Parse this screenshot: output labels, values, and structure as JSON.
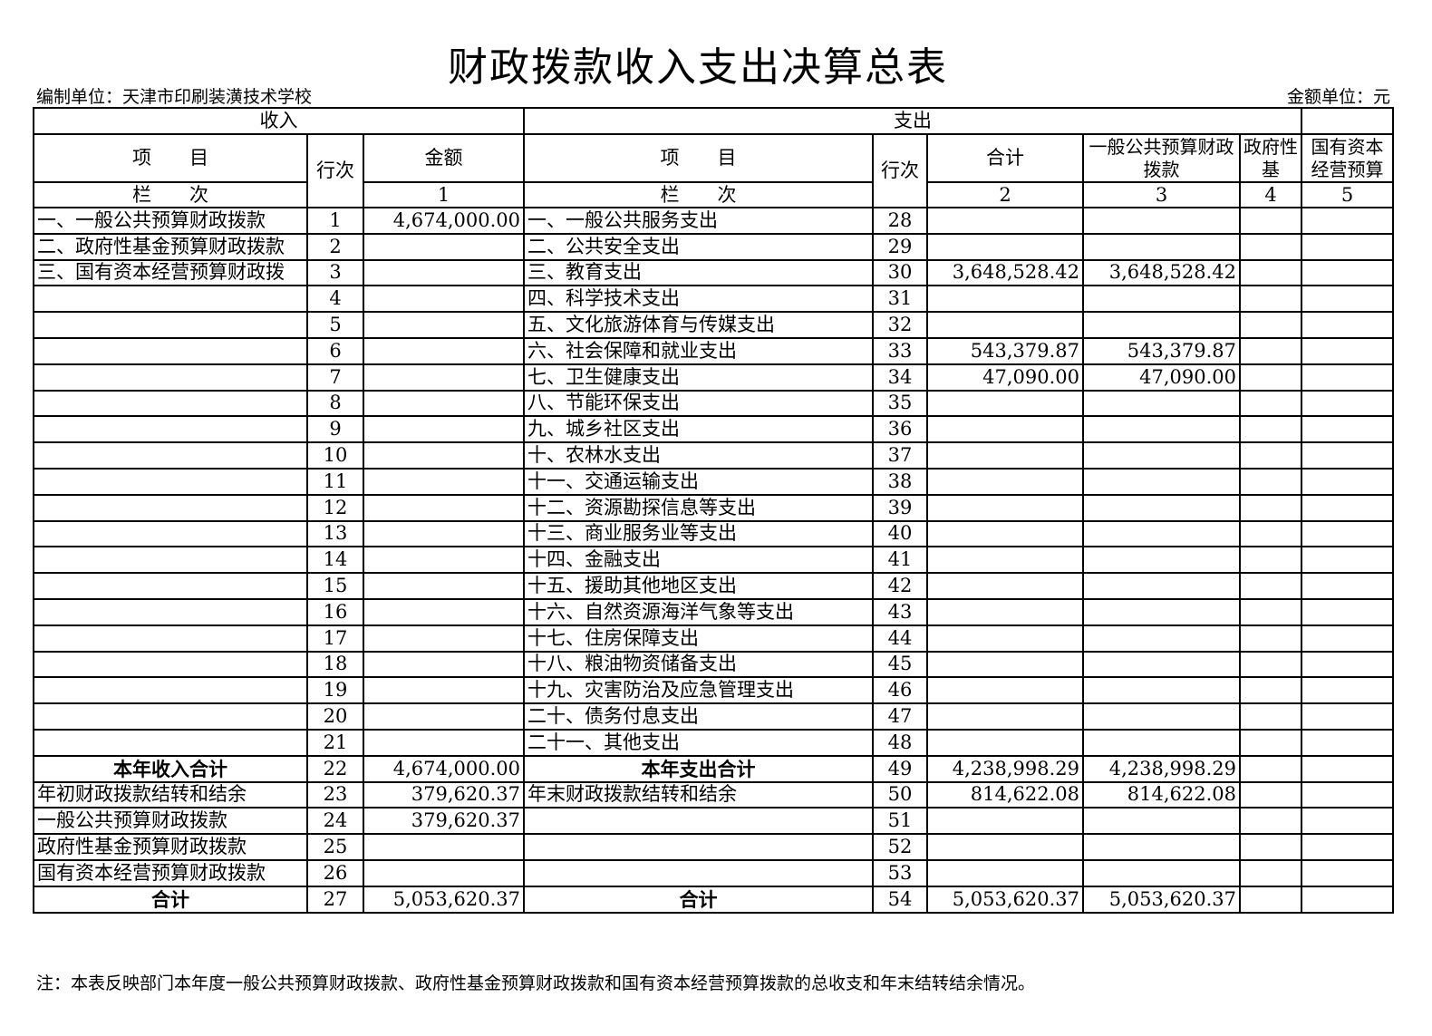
{
  "title": "财政拨款收入支出决算总表",
  "unit_left": "编制单位：天津市印刷装潢技术学校",
  "unit_right": "金额单位：元",
  "header": {
    "income": "收入",
    "expense": "支出",
    "item": "项　　目",
    "line_no": "行次",
    "amount": "金额",
    "total": "合计",
    "general_budget": "一般公共预算财政拨款",
    "gov_fund": "政府性基",
    "state_capital": "国有资本经营预算",
    "col_label": "栏　　次",
    "col1": "1",
    "col2": "2",
    "col3": "3",
    "col4": "4",
    "col5": "5"
  },
  "rows": [
    {
      "in_item": "一、一般公共预算财政拨款",
      "in_no": "1",
      "in_amt": "4,674,000.00",
      "ex_item": "一、一般公共服务支出",
      "ex_no": "28",
      "total": "",
      "general": "",
      "fund": "",
      "capital": ""
    },
    {
      "in_item": "二、政府性基金预算财政拨款",
      "in_no": "2",
      "in_amt": "",
      "ex_item": "二、公共安全支出",
      "ex_no": "29",
      "total": "",
      "general": "",
      "fund": "",
      "capital": ""
    },
    {
      "in_item": "三、国有资本经营预算财政拨",
      "in_no": "3",
      "in_amt": "",
      "ex_item": "三、教育支出",
      "ex_no": "30",
      "total": "3,648,528.42",
      "general": "3,648,528.42",
      "fund": "",
      "capital": ""
    },
    {
      "in_item": "",
      "in_no": "4",
      "in_amt": "",
      "ex_item": "四、科学技术支出",
      "ex_no": "31",
      "total": "",
      "general": "",
      "fund": "",
      "capital": ""
    },
    {
      "in_item": "",
      "in_no": "5",
      "in_amt": "",
      "ex_item": "五、文化旅游体育与传媒支出",
      "ex_no": "32",
      "total": "",
      "general": "",
      "fund": "",
      "capital": ""
    },
    {
      "in_item": "",
      "in_no": "6",
      "in_amt": "",
      "ex_item": "六、社会保障和就业支出",
      "ex_no": "33",
      "total": "543,379.87",
      "general": "543,379.87",
      "fund": "",
      "capital": ""
    },
    {
      "in_item": "",
      "in_no": "7",
      "in_amt": "",
      "ex_item": "七、卫生健康支出",
      "ex_no": "34",
      "total": "47,090.00",
      "general": "47,090.00",
      "fund": "",
      "capital": ""
    },
    {
      "in_item": "",
      "in_no": "8",
      "in_amt": "",
      "ex_item": "八、节能环保支出",
      "ex_no": "35",
      "total": "",
      "general": "",
      "fund": "",
      "capital": ""
    },
    {
      "in_item": "",
      "in_no": "9",
      "in_amt": "",
      "ex_item": "九、城乡社区支出",
      "ex_no": "36",
      "total": "",
      "general": "",
      "fund": "",
      "capital": ""
    },
    {
      "in_item": "",
      "in_no": "10",
      "in_amt": "",
      "ex_item": "十、农林水支出",
      "ex_no": "37",
      "total": "",
      "general": "",
      "fund": "",
      "capital": ""
    },
    {
      "in_item": "",
      "in_no": "11",
      "in_amt": "",
      "ex_item": "十一、交通运输支出",
      "ex_no": "38",
      "total": "",
      "general": "",
      "fund": "",
      "capital": ""
    },
    {
      "in_item": "",
      "in_no": "12",
      "in_amt": "",
      "ex_item": "十二、资源勘探信息等支出",
      "ex_no": "39",
      "total": "",
      "general": "",
      "fund": "",
      "capital": ""
    },
    {
      "in_item": "",
      "in_no": "13",
      "in_amt": "",
      "ex_item": "十三、商业服务业等支出",
      "ex_no": "40",
      "total": "",
      "general": "",
      "fund": "",
      "capital": ""
    },
    {
      "in_item": "",
      "in_no": "14",
      "in_amt": "",
      "ex_item": "十四、金融支出",
      "ex_no": "41",
      "total": "",
      "general": "",
      "fund": "",
      "capital": ""
    },
    {
      "in_item": "",
      "in_no": "15",
      "in_amt": "",
      "ex_item": "十五、援助其他地区支出",
      "ex_no": "42",
      "total": "",
      "general": "",
      "fund": "",
      "capital": ""
    },
    {
      "in_item": "",
      "in_no": "16",
      "in_amt": "",
      "ex_item": "十六、自然资源海洋气象等支出",
      "ex_no": "43",
      "total": "",
      "general": "",
      "fund": "",
      "capital": ""
    },
    {
      "in_item": "",
      "in_no": "17",
      "in_amt": "",
      "ex_item": "十七、住房保障支出",
      "ex_no": "44",
      "total": "",
      "general": "",
      "fund": "",
      "capital": ""
    },
    {
      "in_item": "",
      "in_no": "18",
      "in_amt": "",
      "ex_item": "十八、粮油物资储备支出",
      "ex_no": "45",
      "total": "",
      "general": "",
      "fund": "",
      "capital": ""
    },
    {
      "in_item": "",
      "in_no": "19",
      "in_amt": "",
      "ex_item": "十九、灾害防治及应急管理支出",
      "ex_no": "46",
      "total": "",
      "general": "",
      "fund": "",
      "capital": ""
    },
    {
      "in_item": "",
      "in_no": "20",
      "in_amt": "",
      "ex_item": "二十、债务付息支出",
      "ex_no": "47",
      "total": "",
      "general": "",
      "fund": "",
      "capital": ""
    },
    {
      "in_item": "",
      "in_no": "21",
      "in_amt": "",
      "ex_item": "二十一、其他支出",
      "ex_no": "48",
      "total": "",
      "general": "",
      "fund": "",
      "capital": ""
    },
    {
      "in_item": "本年收入合计",
      "in_no": "22",
      "in_amt": "4,674,000.00",
      "ex_item": "本年支出合计",
      "ex_no": "49",
      "total": "4,238,998.29",
      "general": "4,238,998.29",
      "fund": "",
      "capital": "",
      "bold": true
    },
    {
      "in_item": "年初财政拨款结转和结余",
      "in_no": "23",
      "in_amt": "379,620.37",
      "ex_item": "年末财政拨款结转和结余",
      "ex_no": "50",
      "total": "814,622.08",
      "general": "814,622.08",
      "fund": "",
      "capital": ""
    },
    {
      "in_item": "一般公共预算财政拨款",
      "in_no": "24",
      "in_amt": "379,620.37",
      "ex_item": "",
      "ex_no": "51",
      "total": "",
      "general": "",
      "fund": "",
      "capital": ""
    },
    {
      "in_item": "政府性基金预算财政拨款",
      "in_no": "25",
      "in_amt": "",
      "ex_item": "",
      "ex_no": "52",
      "total": "",
      "general": "",
      "fund": "",
      "capital": ""
    },
    {
      "in_item": "国有资本经营预算财政拨款",
      "in_no": "26",
      "in_amt": "",
      "ex_item": "",
      "ex_no": "53",
      "total": "",
      "general": "",
      "fund": "",
      "capital": ""
    },
    {
      "in_item": "合计",
      "in_no": "27",
      "in_amt": "5,053,620.37",
      "ex_item": "合计",
      "ex_no": "54",
      "total": "5,053,620.37",
      "general": "5,053,620.37",
      "fund": "",
      "capital": "",
      "bold": true
    }
  ],
  "note": "注：本表反映部门本年度一般公共预算财政拨款、政府性基金预算财政拨款和国有资本经营预算拨款的总收支和年末结转结余情况。"
}
